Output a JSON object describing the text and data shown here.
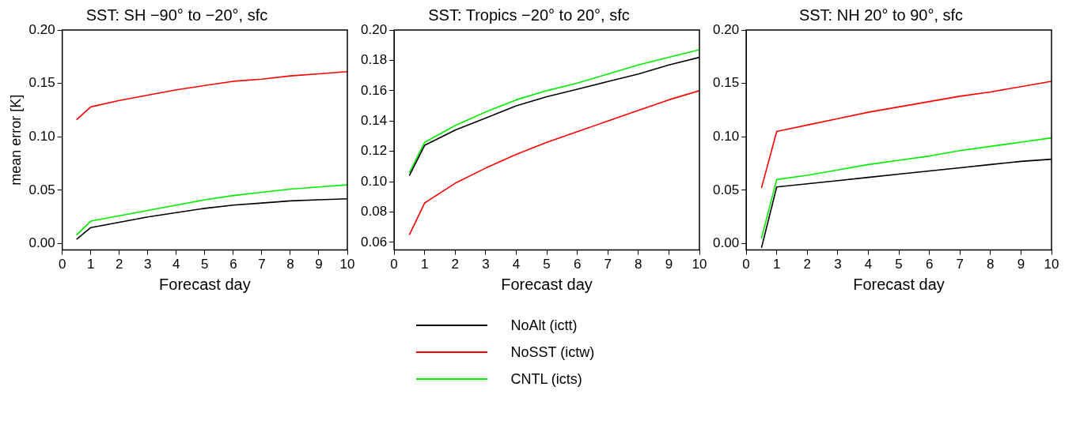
{
  "chart_data": [
    {
      "type": "line",
      "title": "SST: SH −90° to −20°, sfc",
      "xlabel": "Forecast day",
      "ylabel": "mean error [K]",
      "x": [
        0.5,
        1,
        2,
        3,
        4,
        5,
        6,
        7,
        8,
        9,
        10
      ],
      "xlim": [
        0,
        10
      ],
      "xticks": [
        0,
        1,
        2,
        3,
        4,
        5,
        6,
        7,
        8,
        9,
        10
      ],
      "ylim": [
        -0.006,
        0.2
      ],
      "yticks": [
        {
          "value": 0,
          "label": "0.00"
        },
        {
          "value": 0.05,
          "label": "0.05"
        },
        {
          "value": 0.1,
          "label": "0.10"
        },
        {
          "value": 0.15,
          "label": "0.15"
        },
        {
          "value": 0.2,
          "label": "0.20"
        }
      ],
      "grid": false,
      "marker": "none",
      "line_style": "solid",
      "series": [
        {
          "color": "#000000",
          "values": [
            0.004,
            0.015,
            0.02,
            0.025,
            0.029,
            0.033,
            0.036,
            0.038,
            0.04,
            0.041,
            0.042
          ]
        },
        {
          "color": "#ff0000",
          "values": [
            0.116,
            0.128,
            0.134,
            0.139,
            0.144,
            0.148,
            0.152,
            0.154,
            0.157,
            0.159,
            0.161
          ]
        },
        {
          "color": "#00ee00",
          "values": [
            0.008,
            0.021,
            0.026,
            0.031,
            0.036,
            0.041,
            0.045,
            0.048,
            0.051,
            0.053,
            0.055
          ]
        }
      ]
    },
    {
      "type": "line",
      "title": "SST: Tropics −20° to 20°, sfc",
      "xlabel": "Forecast day",
      "x": [
        0.5,
        1,
        2,
        3,
        4,
        5,
        6,
        7,
        8,
        9,
        10
      ],
      "xlim": [
        0,
        10
      ],
      "xticks": [
        0,
        1,
        2,
        3,
        4,
        5,
        6,
        7,
        8,
        9,
        10
      ],
      "ylim": [
        0.055,
        0.2
      ],
      "yticks": [
        {
          "value": 0.06,
          "label": "0.06"
        },
        {
          "value": 0.08,
          "label": "0.08"
        },
        {
          "value": 0.1,
          "label": "0.10"
        },
        {
          "value": 0.12,
          "label": "0.12"
        },
        {
          "value": 0.14,
          "label": "0.14"
        },
        {
          "value": 0.16,
          "label": "0.16"
        },
        {
          "value": 0.18,
          "label": "0.18"
        },
        {
          "value": 0.2,
          "label": "0.20"
        }
      ],
      "grid": false,
      "marker": "none",
      "line_style": "solid",
      "legend": "bottom",
      "series": [
        {
          "name": "NoAlt (ictt)",
          "color": "#000000",
          "values": [
            0.104,
            0.124,
            0.134,
            0.142,
            0.15,
            0.156,
            0.161,
            0.166,
            0.171,
            0.177,
            0.182
          ]
        },
        {
          "name": "NoSST (ictw)",
          "color": "#ff0000",
          "values": [
            0.065,
            0.086,
            0.099,
            0.109,
            0.118,
            0.126,
            0.133,
            0.14,
            0.147,
            0.154,
            0.16
          ]
        },
        {
          "name": "CNTL (icts)",
          "color": "#00ee00",
          "values": [
            0.106,
            0.126,
            0.137,
            0.146,
            0.154,
            0.16,
            0.165,
            0.171,
            0.177,
            0.182,
            0.187
          ]
        }
      ]
    },
    {
      "type": "line",
      "title": "SST: NH 20° to 90°, sfc",
      "xlabel": "Forecast day",
      "x": [
        0.5,
        1,
        2,
        3,
        4,
        5,
        6,
        7,
        8,
        9,
        10
      ],
      "xlim": [
        0,
        10
      ],
      "xticks": [
        0,
        1,
        2,
        3,
        4,
        5,
        6,
        7,
        8,
        9,
        10
      ],
      "ylim": [
        -0.006,
        0.2
      ],
      "yticks": [
        {
          "value": 0,
          "label": "0.00"
        },
        {
          "value": 0.05,
          "label": "0.05"
        },
        {
          "value": 0.1,
          "label": "0.10"
        },
        {
          "value": 0.15,
          "label": "0.15"
        },
        {
          "value": 0.2,
          "label": "0.20"
        }
      ],
      "grid": false,
      "marker": "none",
      "line_style": "solid",
      "series": [
        {
          "color": "#000000",
          "values": [
            -0.004,
            0.053,
            0.056,
            0.059,
            0.062,
            0.065,
            0.068,
            0.071,
            0.074,
            0.077,
            0.079
          ]
        },
        {
          "color": "#ff0000",
          "values": [
            0.052,
            0.105,
            0.111,
            0.117,
            0.123,
            0.128,
            0.133,
            0.138,
            0.142,
            0.147,
            0.152
          ]
        },
        {
          "color": "#00ee00",
          "values": [
            0.005,
            0.06,
            0.064,
            0.069,
            0.074,
            0.078,
            0.082,
            0.087,
            0.091,
            0.095,
            0.099
          ]
        }
      ]
    }
  ]
}
